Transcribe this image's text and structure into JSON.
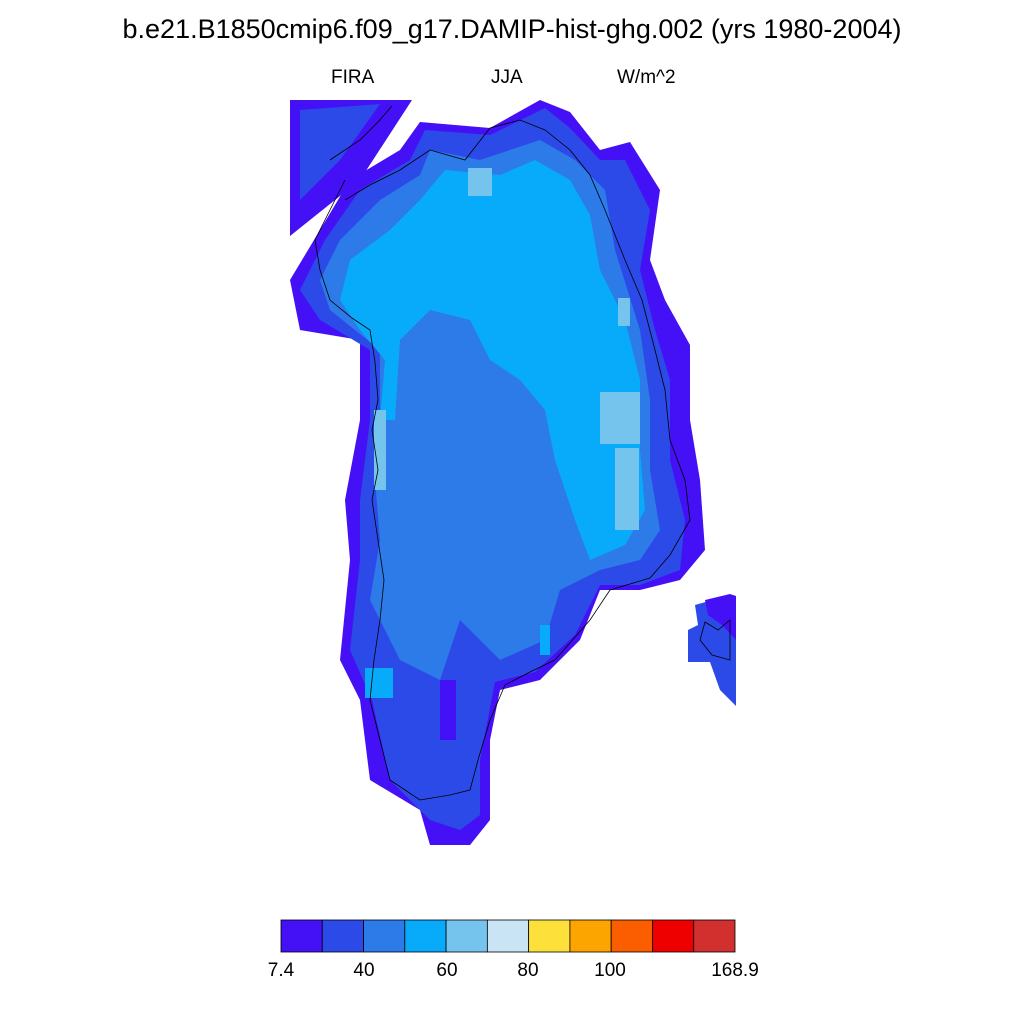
{
  "title": "b.e21.B1850cmip6.f09_g17.DAMIP-hist-ghg.002 (yrs 1980-2004)",
  "variable": "FIRA",
  "season": "JJA",
  "units": "W/m^2",
  "colorbar": {
    "colors": [
      "#4410f5",
      "#2c4ae8",
      "#2d7ae9",
      "#08abfa",
      "#74c4ee",
      "#c9e4f5",
      "#fde13a",
      "#fca500",
      "#fb5e00",
      "#ef0000",
      "#d1302e"
    ],
    "labels": [
      "7.4",
      "40",
      "60",
      "80",
      "100",
      "168.9"
    ]
  },
  "map": {
    "region": "Greenland",
    "field_description": "gridded FIRA values; coastal cells in darkest class, interior in lighter blues"
  }
}
